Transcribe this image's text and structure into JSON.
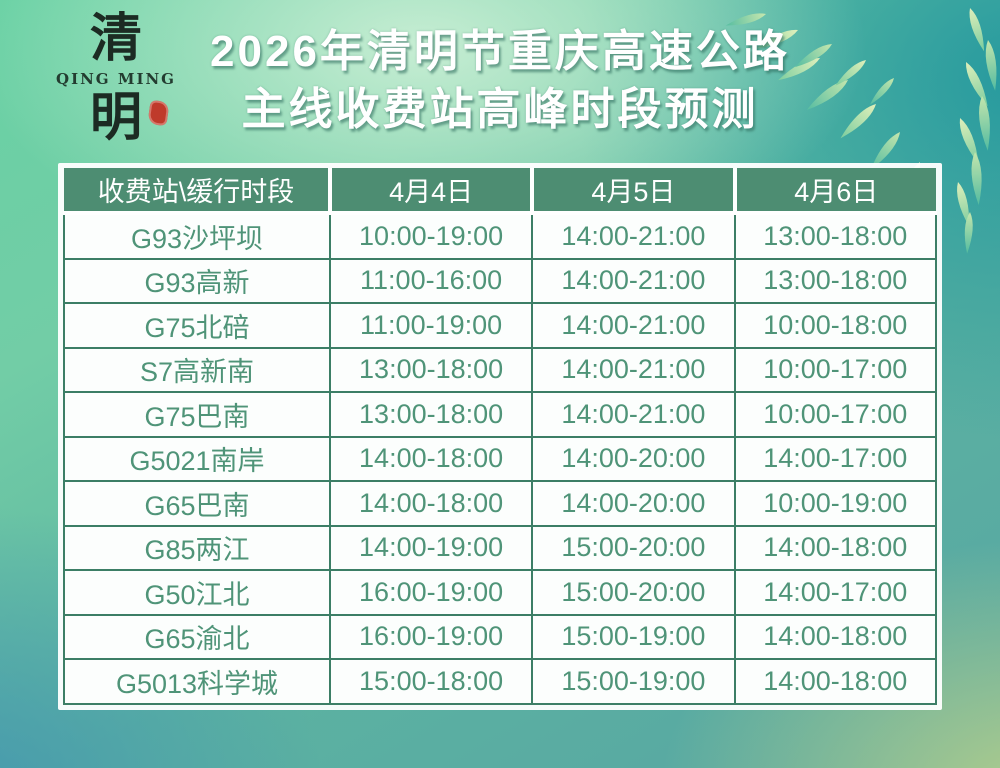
{
  "logo": {
    "char_top": "清",
    "romanized": "QING MING",
    "char_bottom": "明"
  },
  "title": {
    "line1": "2026年清明节重庆高速公路",
    "line2": "主线收费站高峰时段预测"
  },
  "chart_data": {
    "type": "table",
    "title": "2026年清明节重庆高速公路主线收费站高峰时段预测",
    "columns": [
      "收费站\\缓行时段",
      "4月4日",
      "4月5日",
      "4月6日"
    ],
    "rows": [
      [
        "G93沙坪坝",
        "10:00-19:00",
        "14:00-21:00",
        "13:00-18:00"
      ],
      [
        "G93高新",
        "11:00-16:00",
        "14:00-21:00",
        "13:00-18:00"
      ],
      [
        "G75北碚",
        "11:00-19:00",
        "14:00-21:00",
        "10:00-18:00"
      ],
      [
        "S7高新南",
        "13:00-18:00",
        "14:00-21:00",
        "10:00-17:00"
      ],
      [
        "G75巴南",
        "13:00-18:00",
        "14:00-21:00",
        "10:00-17:00"
      ],
      [
        "G5021南岸",
        "14:00-18:00",
        "14:00-20:00",
        "14:00-17:00"
      ],
      [
        "G65巴南",
        "14:00-18:00",
        "14:00-20:00",
        "10:00-19:00"
      ],
      [
        "G85两江",
        "14:00-19:00",
        "15:00-20:00",
        "14:00-18:00"
      ],
      [
        "G50江北",
        "16:00-19:00",
        "15:00-20:00",
        "14:00-17:00"
      ],
      [
        "G65渝北",
        "16:00-19:00",
        "15:00-19:00",
        "14:00-18:00"
      ],
      [
        "G5013科学城",
        "15:00-18:00",
        "15:00-19:00",
        "14:00-18:00"
      ]
    ]
  },
  "colors": {
    "header_bg": "#4d8d72",
    "cell_text": "#4f9478",
    "grid_line": "#3c7e66",
    "title_text": "#ffffff",
    "seal_red": "#bf3a2b",
    "bg_mint": "#69d1a4",
    "bg_teal": "#20969e",
    "bg_blue": "#4294b0",
    "bg_yellow_green": "#bdd389"
  }
}
